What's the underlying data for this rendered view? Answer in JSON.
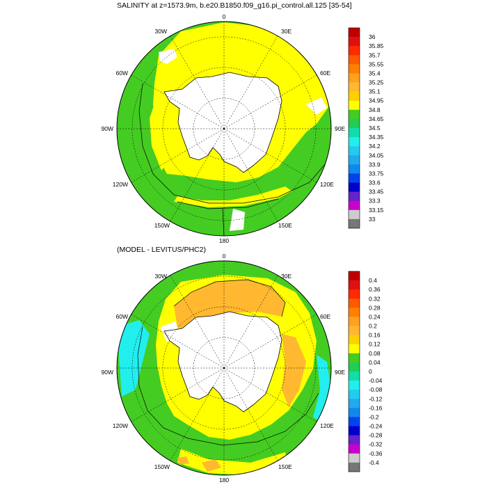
{
  "panels": [
    {
      "id": "top",
      "title": "SALINITY at z=1573.9m, b.e20.B1850.f09_g16.pi_control.all.125 [35-54]",
      "lon_labels": {
        "top": "0",
        "top_left": "30W",
        "top_right": "30E",
        "left_upper": "60W",
        "right_upper": "60E",
        "left": "90W",
        "right": "90E",
        "left_lower": "120W",
        "right_lower": "120E",
        "bottom_left": "150W",
        "bottom_right": "150E",
        "bottom": "180"
      },
      "colorbar": {
        "labels": [
          "36",
          "35.85",
          "35.7",
          "35.55",
          "35.4",
          "35.25",
          "35.1",
          "34.95",
          "34.8",
          "34.65",
          "34.5",
          "34.35",
          "34.2",
          "34.05",
          "33.9",
          "33.75",
          "33.6",
          "33.45",
          "33.3",
          "33.15",
          "33"
        ],
        "colors": [
          "#c00000",
          "#e01010",
          "#ff2a00",
          "#ff5a00",
          "#ff8000",
          "#ffa020",
          "#ffb830",
          "#ffd000",
          "#ffff00",
          "#44cc22",
          "#22cc55",
          "#11ddaa",
          "#22eeee",
          "#22ccee",
          "#22aaee",
          "#1188ee",
          "#0044ee",
          "#0000cc",
          "#6622cc",
          "#cc00cc",
          "#cccccc",
          "#777777"
        ]
      }
    },
    {
      "id": "bottom",
      "title": "(MODEL - LEVITUS/PHC2)",
      "lon_labels": {
        "top": "0",
        "top_left": "30W",
        "top_right": "30E",
        "left_upper": "60W",
        "right_upper": "60E",
        "left": "90W",
        "right": "90E",
        "left_lower": "120W",
        "right_lower": "120E",
        "bottom_left": "150W",
        "bottom_right": "150E",
        "bottom": "180"
      },
      "colorbar": {
        "labels": [
          "0.4",
          "0.36",
          "0.32",
          "0.28",
          "0.24",
          "0.2",
          "0.16",
          "0.12",
          "0.08",
          "0.04",
          "0",
          "-0.04",
          "-0.08",
          "-0.12",
          "-0.16",
          "-0.2",
          "-0.24",
          "-0.28",
          "-0.32",
          "-0.36",
          "-0.4"
        ],
        "colors": [
          "#c00000",
          "#e01010",
          "#ff2a00",
          "#ff5a00",
          "#ff8000",
          "#ffa020",
          "#ffb830",
          "#ffd000",
          "#ffff00",
          "#44cc22",
          "#22cc55",
          "#11ddaa",
          "#22eeee",
          "#22ccee",
          "#22aaee",
          "#1188ee",
          "#0044ee",
          "#0000cc",
          "#6622cc",
          "#cc00cc",
          "#cccccc",
          "#777777"
        ]
      }
    }
  ]
}
